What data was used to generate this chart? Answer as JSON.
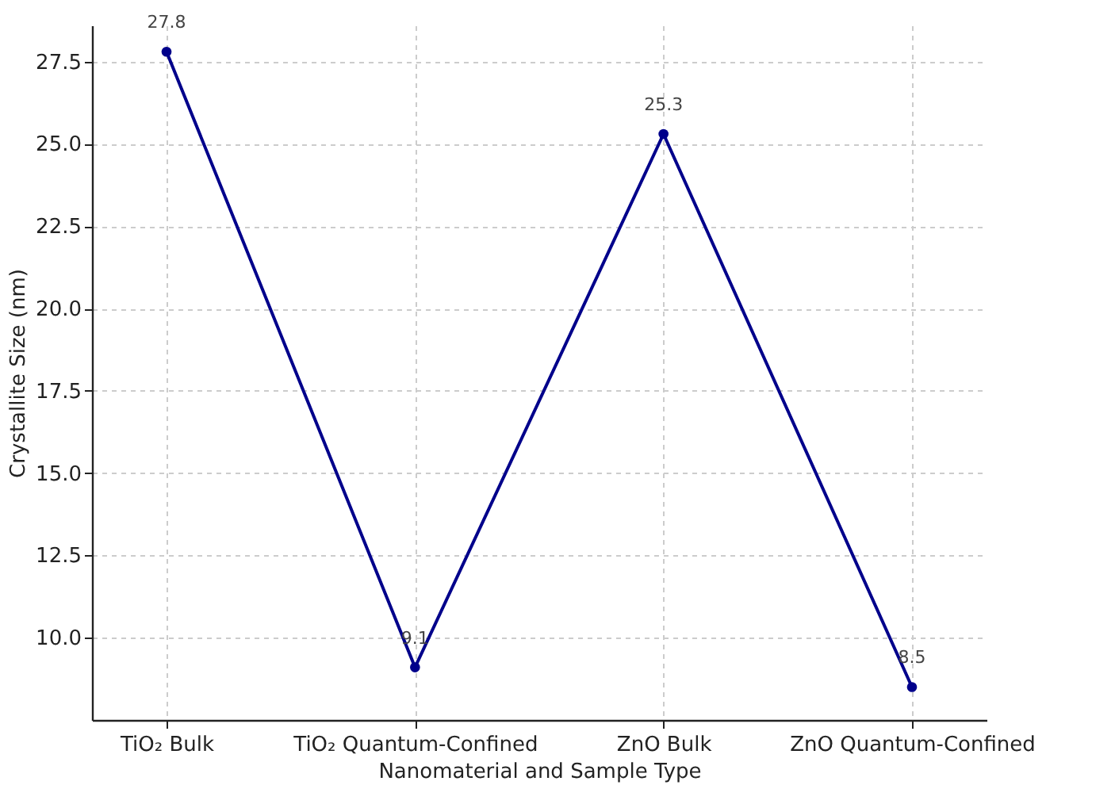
{
  "chart_data": {
    "type": "line",
    "xlabel": "Nanomaterial and Sample Type",
    "ylabel": "Crystallite Size (nm)",
    "categories": [
      "TiO₂ Bulk",
      "TiO₂ Quantum-Confined",
      "ZnO Bulk",
      "ZnO Quantum-Confined"
    ],
    "series": [
      {
        "color": "#00008b",
        "values": [
          27.8,
          9.1,
          25.3,
          8.5
        ]
      }
    ],
    "ylim": [
      7.5,
      28.6
    ],
    "yticks": [
      {
        "value": 10,
        "label": "10.0"
      },
      12.5,
      {
        "value": 15,
        "label": "15.0"
      },
      17.5,
      {
        "value": 20,
        "label": "20.0"
      },
      22.5,
      {
        "value": 25,
        "label": "25.0"
      },
      27.5
    ],
    "grid": true,
    "marker": "circle",
    "line_style": "solid",
    "data_labels": true,
    "legend": false
  }
}
